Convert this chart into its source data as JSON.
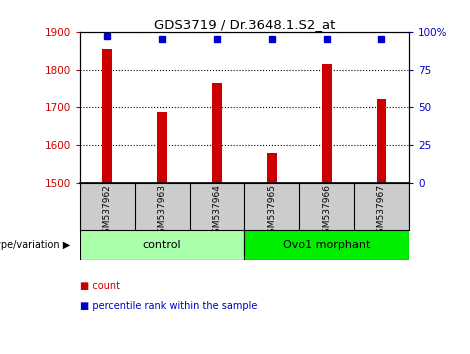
{
  "title": "GDS3719 / Dr.3648.1.S2_at",
  "samples": [
    "GSM537962",
    "GSM537963",
    "GSM537964",
    "GSM537965",
    "GSM537966",
    "GSM537967"
  ],
  "counts": [
    1855,
    1688,
    1765,
    1578,
    1815,
    1722
  ],
  "percentiles": [
    97,
    95,
    95,
    95,
    95,
    95
  ],
  "ylim_left": [
    1500,
    1900
  ],
  "ylim_right": [
    0,
    100
  ],
  "yticks_left": [
    1500,
    1600,
    1700,
    1800,
    1900
  ],
  "yticks_right": [
    0,
    25,
    50,
    75,
    100
  ],
  "yticklabels_right": [
    "0",
    "25",
    "50",
    "75",
    "100%"
  ],
  "bar_color": "#cc0000",
  "dot_color": "#0000cc",
  "groups": [
    {
      "label": "control",
      "indices": [
        0,
        1,
        2
      ],
      "color": "#aaffaa"
    },
    {
      "label": "Ovo1 morphant",
      "indices": [
        3,
        4,
        5
      ],
      "color": "#00ee00"
    }
  ],
  "group_label": "genotype/variation",
  "legend_items": [
    {
      "color": "#cc0000",
      "label": "count"
    },
    {
      "color": "#0000cc",
      "label": "percentile rank within the sample"
    }
  ],
  "background_color": "#ffffff",
  "tick_label_area_color": "#cccccc",
  "grid_color": "#000000"
}
